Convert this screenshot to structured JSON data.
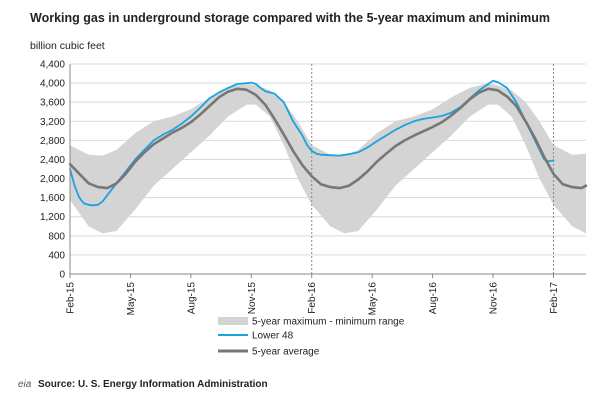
{
  "chart_data": {
    "type": "area",
    "title": "Working gas in underground storage compared with the  5-year maximum and minimum",
    "ylabel": "billion  cubic feet",
    "ylim": [
      0,
      4400
    ],
    "ytick_labels": [
      "0",
      "400",
      "800",
      "1,200",
      "1,600",
      "2,000",
      "2,400",
      "2,800",
      "3,200",
      "3,600",
      "4,000",
      "4,400"
    ],
    "xrange": [
      0,
      111
    ],
    "xtick_labels": [
      {
        "label": "Feb-15",
        "x": 0
      },
      {
        "label": "May-15",
        "x": 13
      },
      {
        "label": "Aug-15",
        "x": 26
      },
      {
        "label": "Nov-15",
        "x": 39
      },
      {
        "label": "Feb-16",
        "x": 52
      },
      {
        "label": "May-16",
        "x": 65
      },
      {
        "label": "Aug-16",
        "x": 78
      },
      {
        "label": "Nov-16",
        "x": 91
      },
      {
        "label": "Feb-17",
        "x": 104
      }
    ],
    "vertical_markers": [
      52,
      104
    ],
    "grid": true,
    "legend_position": "bottom",
    "series": [
      {
        "name": "5-year maximum - minimum range",
        "type": "band",
        "color": "#d4d4d4",
        "points": [
          {
            "x": 0,
            "upper": 2700,
            "lower": 1550
          },
          {
            "x": 4,
            "upper": 2500,
            "lower": 1000
          },
          {
            "x": 7,
            "upper": 2480,
            "lower": 850
          },
          {
            "x": 10,
            "upper": 2600,
            "lower": 900
          },
          {
            "x": 14,
            "upper": 2950,
            "lower": 1350
          },
          {
            "x": 18,
            "upper": 3200,
            "lower": 1850
          },
          {
            "x": 22,
            "upper": 3300,
            "lower": 2200
          },
          {
            "x": 26,
            "upper": 3450,
            "lower": 2550
          },
          {
            "x": 30,
            "upper": 3700,
            "lower": 2900
          },
          {
            "x": 34,
            "upper": 3900,
            "lower": 3300
          },
          {
            "x": 38,
            "upper": 4000,
            "lower": 3550
          },
          {
            "x": 40,
            "upper": 3950,
            "lower": 3550
          },
          {
            "x": 43,
            "upper": 3850,
            "lower": 3300
          },
          {
            "x": 46,
            "upper": 3600,
            "lower": 2700
          },
          {
            "x": 49,
            "upper": 3200,
            "lower": 2000
          },
          {
            "x": 52,
            "upper": 2700,
            "lower": 1450
          },
          {
            "x": 56,
            "upper": 2500,
            "lower": 1000
          },
          {
            "x": 59,
            "upper": 2480,
            "lower": 850
          },
          {
            "x": 62,
            "upper": 2600,
            "lower": 900
          },
          {
            "x": 66,
            "upper": 2950,
            "lower": 1350
          },
          {
            "x": 70,
            "upper": 3200,
            "lower": 1850
          },
          {
            "x": 74,
            "upper": 3300,
            "lower": 2200
          },
          {
            "x": 78,
            "upper": 3450,
            "lower": 2550
          },
          {
            "x": 82,
            "upper": 3700,
            "lower": 2900
          },
          {
            "x": 86,
            "upper": 3900,
            "lower": 3300
          },
          {
            "x": 90,
            "upper": 4000,
            "lower": 3550
          },
          {
            "x": 92,
            "upper": 3950,
            "lower": 3550
          },
          {
            "x": 95,
            "upper": 3850,
            "lower": 3300
          },
          {
            "x": 98,
            "upper": 3600,
            "lower": 2700
          },
          {
            "x": 101,
            "upper": 3200,
            "lower": 2000
          },
          {
            "x": 104,
            "upper": 2700,
            "lower": 1450
          },
          {
            "x": 108,
            "upper": 2500,
            "lower": 1000
          },
          {
            "x": 111,
            "upper": 2520,
            "lower": 850
          }
        ]
      },
      {
        "name": "Lower 48",
        "type": "line",
        "color": "#1aa3e0",
        "x": [
          0,
          1,
          2,
          3,
          4,
          5,
          6,
          7,
          8,
          10,
          12,
          14,
          16,
          18,
          20,
          22,
          24,
          26,
          28,
          30,
          32,
          34,
          36,
          38,
          39,
          40,
          41,
          42,
          44,
          46,
          48,
          50,
          51,
          52,
          53,
          54,
          56,
          58,
          60,
          62,
          64,
          66,
          68,
          70,
          72,
          74,
          76,
          78,
          80,
          82,
          84,
          86,
          88,
          90,
          91,
          92,
          94,
          96,
          98,
          100,
          102,
          103,
          104
        ],
        "values": [
          2200,
          1850,
          1600,
          1480,
          1450,
          1440,
          1450,
          1520,
          1650,
          1900,
          2150,
          2400,
          2600,
          2800,
          2920,
          3020,
          3150,
          3300,
          3480,
          3680,
          3800,
          3900,
          3980,
          4000,
          4010,
          3980,
          3900,
          3830,
          3780,
          3600,
          3200,
          2900,
          2700,
          2580,
          2520,
          2500,
          2490,
          2480,
          2510,
          2550,
          2650,
          2780,
          2900,
          3020,
          3120,
          3200,
          3250,
          3280,
          3310,
          3380,
          3500,
          3680,
          3850,
          3980,
          4050,
          4020,
          3900,
          3600,
          3200,
          2800,
          2400,
          2360,
          2380
        ]
      },
      {
        "name": "5-year average",
        "type": "line",
        "color": "#777777",
        "x": [
          0,
          2,
          4,
          6,
          8,
          10,
          12,
          14,
          16,
          18,
          20,
          22,
          24,
          26,
          28,
          30,
          32,
          34,
          36,
          38,
          40,
          42,
          44,
          46,
          48,
          50,
          52,
          54,
          56,
          58,
          60,
          62,
          64,
          66,
          68,
          70,
          72,
          74,
          76,
          78,
          80,
          82,
          84,
          86,
          88,
          90,
          92,
          94,
          96,
          98,
          100,
          102,
          104,
          106,
          108,
          110,
          111
        ],
        "values": [
          2300,
          2100,
          1900,
          1820,
          1800,
          1900,
          2100,
          2350,
          2550,
          2720,
          2840,
          2960,
          3060,
          3180,
          3340,
          3520,
          3700,
          3820,
          3880,
          3860,
          3750,
          3550,
          3250,
          2920,
          2580,
          2280,
          2050,
          1880,
          1820,
          1800,
          1850,
          1980,
          2150,
          2350,
          2520,
          2680,
          2800,
          2900,
          2990,
          3080,
          3180,
          3320,
          3480,
          3660,
          3800,
          3880,
          3850,
          3720,
          3520,
          3200,
          2850,
          2450,
          2100,
          1880,
          1820,
          1800,
          1850
        ]
      }
    ]
  },
  "source": {
    "logo": "eia",
    "text": "Source:  U. S. Energy Information Administration"
  }
}
